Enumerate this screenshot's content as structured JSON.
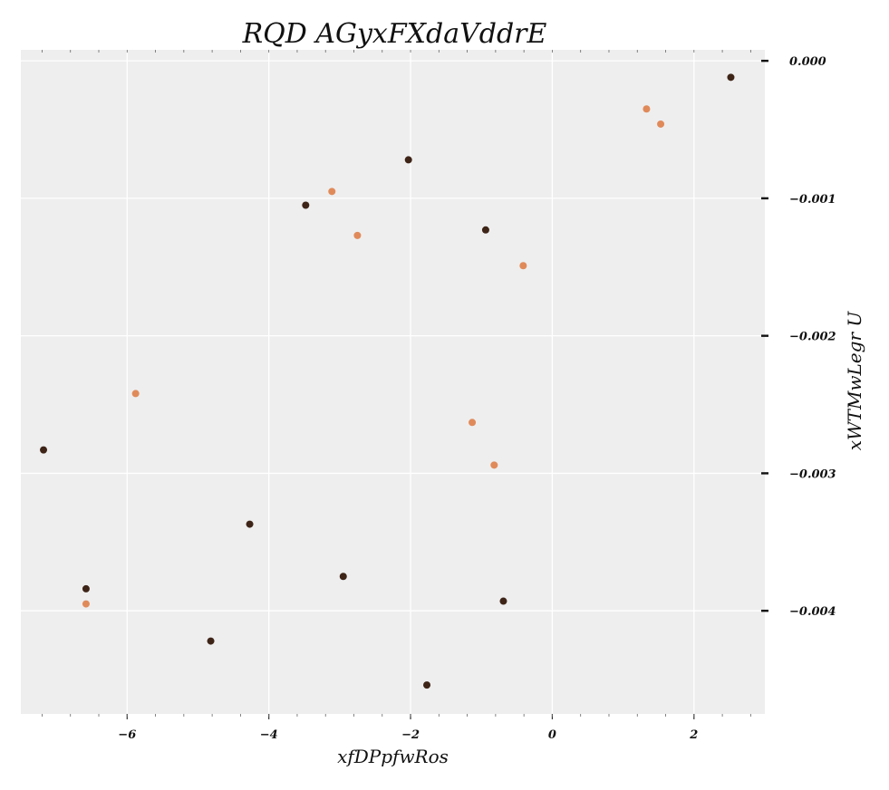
{
  "chart_data": {
    "type": "scatter",
    "title": "RQD AGyxFXdaVddrE",
    "xlabel": "xfDPpfwRos",
    "ylabel": "xWTMwLegr U",
    "xlim": [
      -7.5,
      3.0
    ],
    "ylim": [
      -0.00475,
      8e-05
    ],
    "x_ticks": [
      {
        "value": -6,
        "label": "−6"
      },
      {
        "value": -4,
        "label": "−4"
      },
      {
        "value": -2,
        "label": "−2"
      },
      {
        "value": 0,
        "label": "0"
      },
      {
        "value": 2,
        "label": "2"
      }
    ],
    "x_minor_step": 0.4,
    "y_ticks": [
      {
        "value": 0.0,
        "label": "0.000"
      },
      {
        "value": -0.001,
        "label": "−0.001"
      },
      {
        "value": -0.002,
        "label": "−0.002"
      },
      {
        "value": -0.003,
        "label": "−0.003"
      },
      {
        "value": -0.004,
        "label": "−0.004"
      }
    ],
    "grid": true,
    "y_axis_position": "right",
    "background_color": "#eeeeee",
    "grid_color": "#ffffff",
    "series": [
      {
        "color": "#3d2417",
        "points": [
          {
            "x": 2.52,
            "y": -0.00012
          },
          {
            "x": -2.03,
            "y": -0.00072
          },
          {
            "x": -3.48,
            "y": -0.00105
          },
          {
            "x": -0.94,
            "y": -0.00123
          },
          {
            "x": -7.18,
            "y": -0.00283
          },
          {
            "x": -4.27,
            "y": -0.00337
          },
          {
            "x": -6.58,
            "y": -0.00384
          },
          {
            "x": -2.95,
            "y": -0.00375
          },
          {
            "x": -0.69,
            "y": -0.00393
          },
          {
            "x": -4.82,
            "y": -0.00422
          },
          {
            "x": -1.77,
            "y": -0.00454
          }
        ]
      },
      {
        "color": "#e08a5a",
        "points": [
          {
            "x": 1.33,
            "y": -0.00035
          },
          {
            "x": 1.53,
            "y": -0.00046
          },
          {
            "x": -3.11,
            "y": -0.00095
          },
          {
            "x": -2.75,
            "y": -0.00127
          },
          {
            "x": -0.41,
            "y": -0.00149
          },
          {
            "x": -5.88,
            "y": -0.00242
          },
          {
            "x": -1.13,
            "y": -0.00263
          },
          {
            "x": -0.82,
            "y": -0.00294
          },
          {
            "x": -6.58,
            "y": -0.00395
          }
        ]
      }
    ]
  }
}
